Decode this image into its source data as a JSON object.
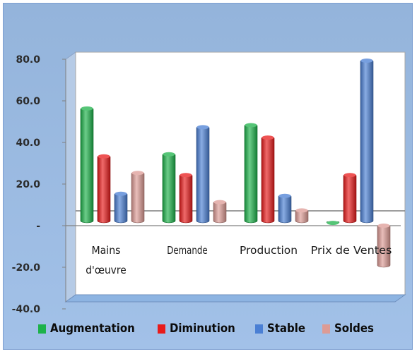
{
  "chart_data": {
    "type": "bar",
    "title": "",
    "xlabel": "",
    "ylabel": "",
    "categories": [
      "Mains d'œuvre",
      "Demande",
      "Production",
      "Prix de Ventes"
    ],
    "category_lines": [
      [
        "Mains",
        "d'œuvre"
      ],
      [
        "Demande"
      ],
      [
        "Production"
      ],
      [
        "Prix de Ventes"
      ]
    ],
    "series": [
      {
        "name": "Augmentation",
        "color": "#1db24a",
        "values": [
          57,
          35,
          49,
          2
        ]
      },
      {
        "name": "Diminution",
        "color": "#e81b1b",
        "values": [
          34,
          25,
          43,
          25
        ]
      },
      {
        "name": "Stable",
        "color": "#4a7fd4",
        "values": [
          16,
          48,
          15,
          80
        ]
      },
      {
        "name": "Soldes",
        "color": "#dd9b95",
        "values": [
          26,
          12,
          8,
          -20
        ]
      }
    ],
    "ylim": [
      -40,
      80
    ],
    "yticks": [
      -40,
      -20,
      0,
      20,
      40,
      60,
      80
    ],
    "ytick_labels": [
      "-40.0",
      "-20.0",
      "-",
      "20.0",
      "40.0",
      "60.0",
      "80.0"
    ],
    "grid": false,
    "legend_position": "bottom",
    "background_color": "#9cbde6",
    "plot_color": "#ffffff",
    "floor_color": "#8db4e2"
  }
}
